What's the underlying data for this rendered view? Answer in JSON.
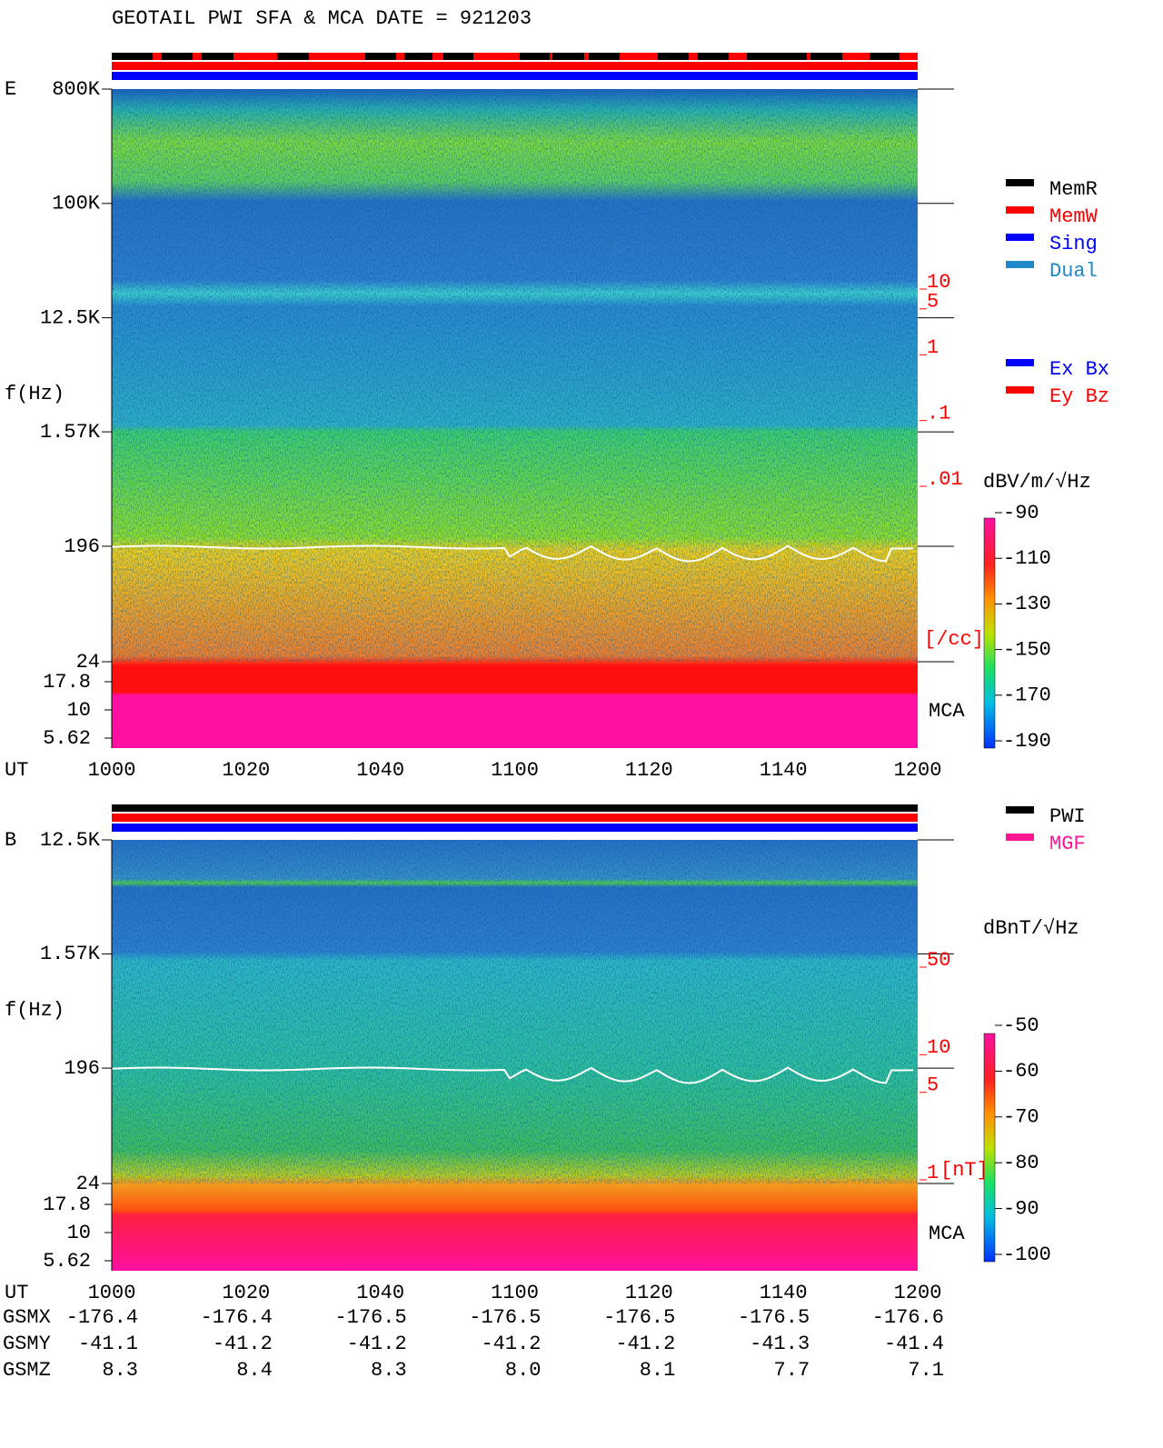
{
  "title": "GEOTAIL  PWI SFA & MCA   DATE = 921203",
  "chart_data": [
    {
      "type": "spectrogram",
      "component": "E",
      "ylabel": "f(Hz)",
      "log_y": true,
      "ylim": [
        24,
        800000
      ],
      "yticks": [
        {
          "value": 800000,
          "label": "800K"
        },
        {
          "value": 100000,
          "label": "100K"
        },
        {
          "value": 12500,
          "label": "12.5K"
        },
        {
          "value": 1570,
          "label": "1.57K"
        },
        196,
        24
      ],
      "mca_label": "MCA",
      "mca_ylim": [
        5.62,
        17.8
      ],
      "mca_yticks": [
        17.8,
        10,
        5.62
      ],
      "xlabel": "UT",
      "x": [
        "1000",
        "1020",
        "1040",
        "1100",
        "1120",
        "1140",
        "1200"
      ],
      "y2_label": "[/cc]",
      "y2lim": [
        0.01,
        10
      ],
      "y2_color": "#ff0000",
      "y2ticks": [
        10,
        5,
        1,
        {
          "value": 0.1,
          "label": ".1"
        },
        {
          "value": 0.01,
          "label": ".01"
        }
      ],
      "colorbar": {
        "label": "dBV/m/√Hz",
        "lim": [
          -190,
          -90
        ],
        "ticks": [
          -90,
          -110,
          -130,
          -150,
          -170,
          -190
        ]
      },
      "legend": [
        {
          "name": "MemR",
          "color": "#000000"
        },
        {
          "name": "MemW",
          "color": "#ff0000"
        },
        {
          "name": "Sing",
          "color": "#0000ff"
        },
        {
          "name": "Dual",
          "color": "#1e88c8"
        }
      ],
      "legend2": [
        {
          "name": "Ex Bx",
          "color": "#0000ff"
        },
        {
          "name": "Ey Bz",
          "color": "#ff0000"
        }
      ]
    },
    {
      "type": "spectrogram",
      "component": "B",
      "ylabel": "f(Hz)",
      "log_y": true,
      "ylim": [
        24,
        12500
      ],
      "yticks": [
        {
          "value": 12500,
          "label": "12.5K"
        },
        {
          "value": 1570,
          "label": "1.57K"
        },
        196,
        24
      ],
      "mca_label": "MCA",
      "mca_ylim": [
        5.62,
        17.8
      ],
      "mca_yticks": [
        17.8,
        10,
        5.62
      ],
      "xlabel": "UT",
      "x": [
        "1000",
        "1020",
        "1040",
        "1100",
        "1120",
        "1140",
        "1200"
      ],
      "y2_label": "[nT]",
      "y2lim": [
        1,
        50
      ],
      "y2_color": "#ff0000",
      "y2ticks": [
        50,
        10,
        5,
        1
      ],
      "colorbar": {
        "label": "dBnT/√Hz",
        "lim": [
          -100,
          -50
        ],
        "ticks": [
          -50,
          -60,
          -70,
          -80,
          -90,
          -100
        ]
      },
      "legend": [
        {
          "name": "PWI",
          "color": "#000000"
        },
        {
          "name": "MGF",
          "color": "#ff1493"
        }
      ]
    }
  ],
  "ephemeris": {
    "labels": [
      "GSMX",
      "GSMY",
      "GSMZ"
    ],
    "rows": [
      [
        "-176.4",
        "-176.4",
        "-176.5",
        "-176.5",
        "-176.5",
        "-176.5",
        "-176.6"
      ],
      [
        "-41.1",
        "-41.2",
        "-41.2",
        "-41.2",
        "-41.2",
        "-41.3",
        "-41.4"
      ],
      [
        "8.3",
        "8.4",
        "8.3",
        "8.0",
        "8.1",
        "7.7",
        "7.1"
      ]
    ]
  }
}
